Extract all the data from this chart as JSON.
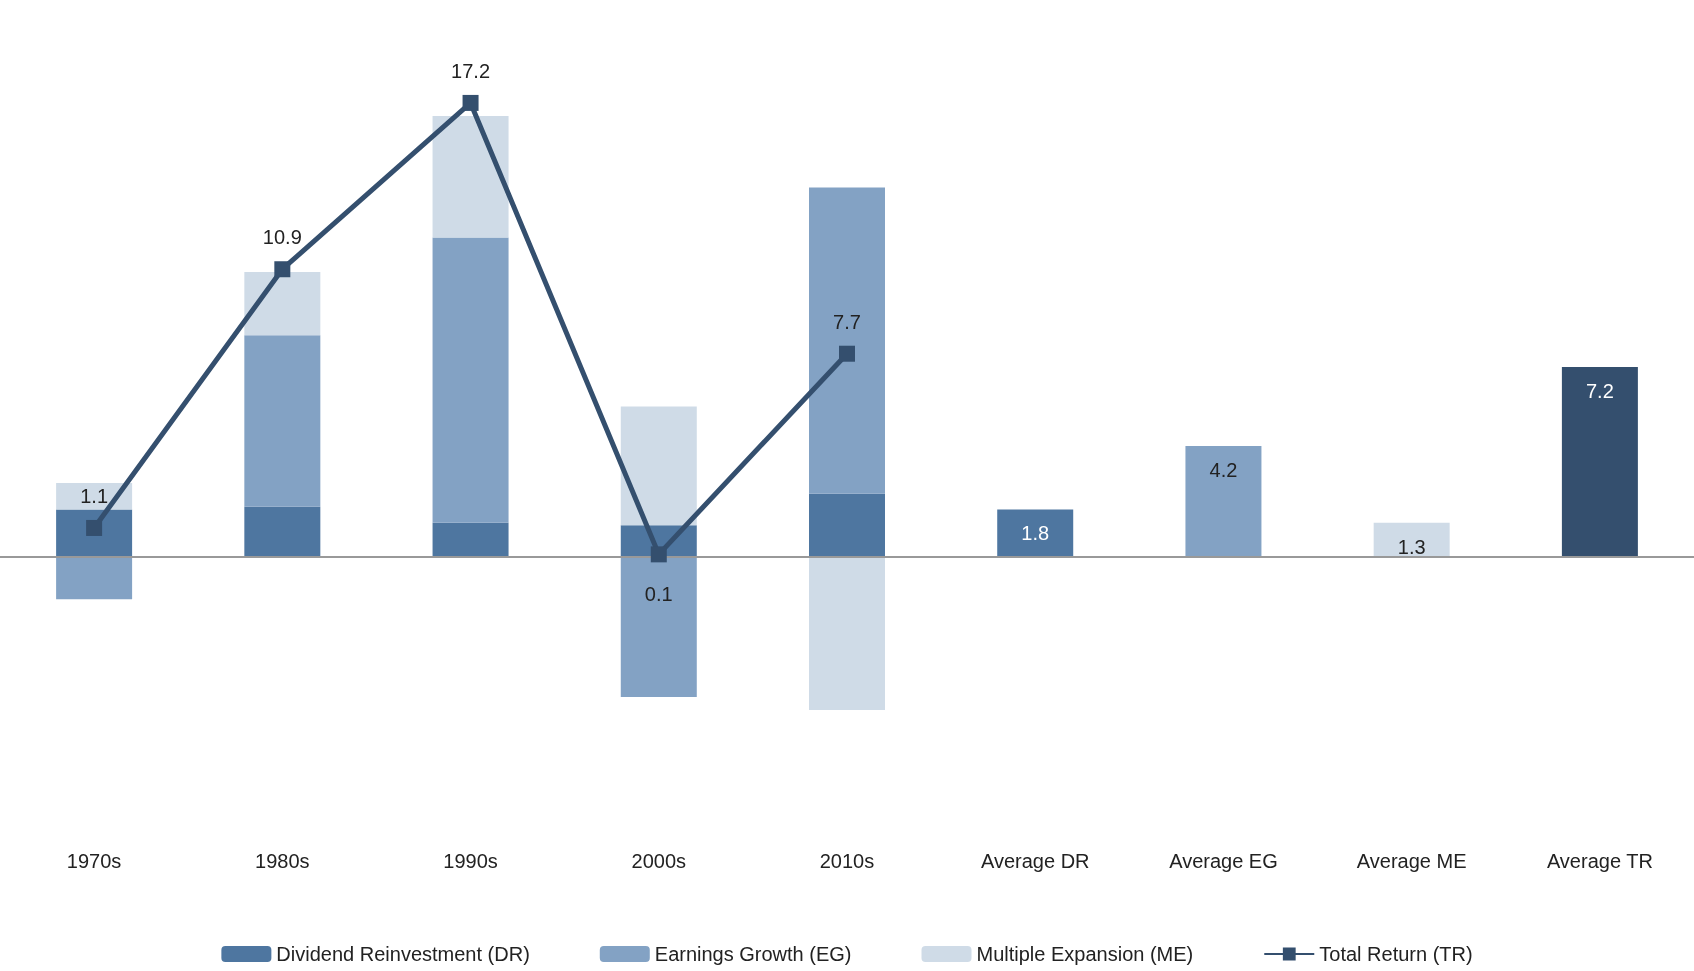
{
  "chart_data": {
    "type": "bar",
    "stacked": true,
    "categories": [
      "1970s",
      "1980s",
      "1990s",
      "2000s",
      "2010s",
      "Average DR",
      "Average EG",
      "Average ME",
      "Average TR"
    ],
    "series": [
      {
        "name": "Dividend Reinvestment (DR)",
        "color": "#4e76a0",
        "values": [
          1.8,
          1.9,
          1.3,
          1.2,
          2.4,
          1.8,
          null,
          null,
          null
        ],
        "value_labels": [
          null,
          null,
          null,
          null,
          null,
          "1.8",
          null,
          null,
          null
        ]
      },
      {
        "name": "Earnings Growth (EG)",
        "color": "#83a2c4",
        "values": [
          -1.6,
          6.5,
          10.8,
          -5.3,
          11.6,
          null,
          4.2,
          null,
          null
        ],
        "value_labels": [
          null,
          null,
          null,
          null,
          null,
          null,
          "4.2",
          null,
          null
        ]
      },
      {
        "name": "Multiple Expansion (ME)",
        "color": "#cfdbe7",
        "values": [
          1.0,
          2.4,
          4.6,
          4.5,
          -5.8,
          null,
          null,
          1.3,
          null
        ],
        "value_labels": [
          null,
          null,
          null,
          null,
          null,
          null,
          null,
          "1.3",
          null
        ]
      },
      {
        "color": "#344f6e",
        "values": [
          null,
          null,
          null,
          null,
          null,
          null,
          null,
          null,
          7.2
        ],
        "value_labels": [
          null,
          null,
          null,
          null,
          null,
          null,
          null,
          null,
          "7.2"
        ]
      },
      {
        "name": "Total Return (TR)",
        "type": "line",
        "color": "#344f6e",
        "values": [
          1.1,
          10.9,
          17.2,
          0.1,
          7.7,
          null,
          null,
          null,
          null
        ],
        "value_labels": [
          "1.1",
          "10.9",
          "17.2",
          "0.1",
          "7.7",
          null,
          null,
          null,
          null
        ]
      }
    ],
    "ref_lines": [
      {
        "axis": "y",
        "value": 0,
        "color": "#999999"
      }
    ],
    "grid": false,
    "legend": "bottom",
    "marker": "square",
    "line_style": "solid",
    "tick_labels": "x"
  }
}
